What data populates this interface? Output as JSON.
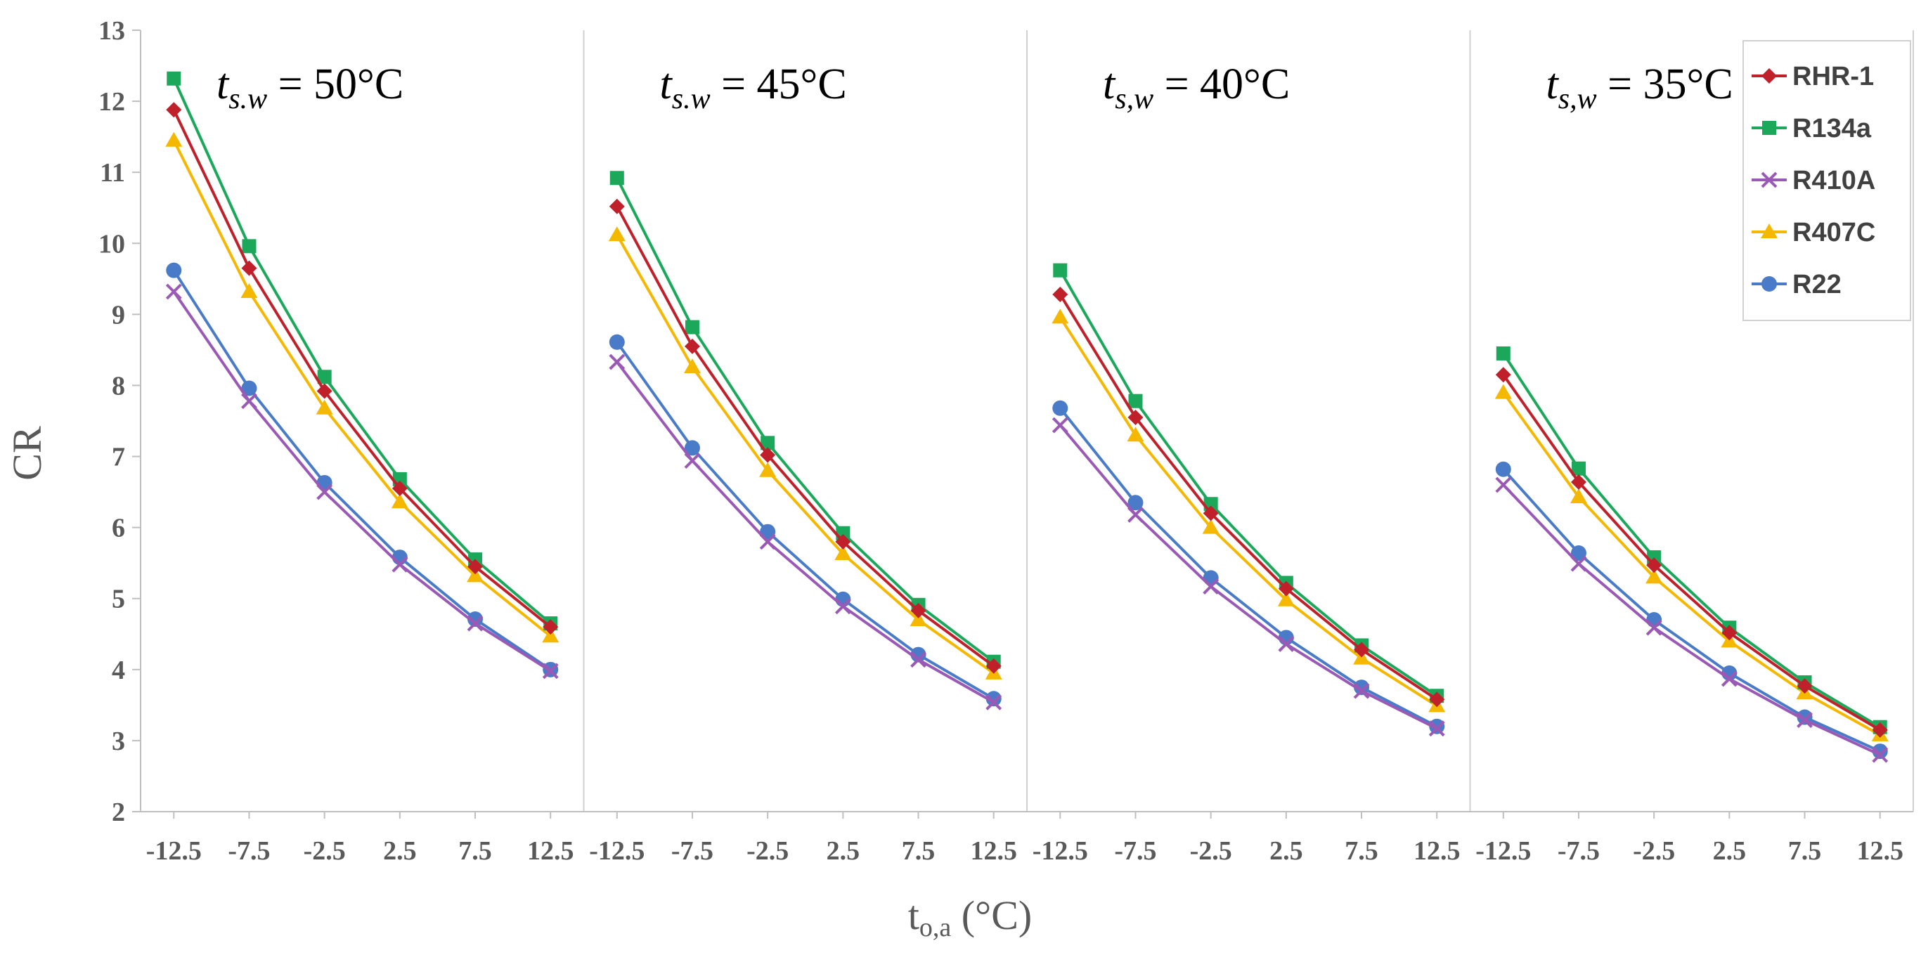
{
  "chart_data": {
    "type": "line",
    "ylabel": "CR",
    "xlabel": "t",
    "xlabel_sub": "o,a",
    "xlabel_unit": " (°C)",
    "ylim": [
      2,
      13
    ],
    "yticks": [
      "2",
      "3",
      "4",
      "5",
      "6",
      "7",
      "8",
      "9",
      "10",
      "11",
      "12",
      "13"
    ],
    "x": [
      -12.5,
      -7.5,
      -2.5,
      2.5,
      7.5,
      12.5
    ],
    "x_tick_labels": [
      "-12.5",
      "-7.5",
      "-2.5",
      "2.5",
      "7.5",
      "12.5"
    ],
    "legend": [
      "RHR-1",
      "R134a",
      "R410A",
      "R407C",
      "R22"
    ],
    "colors": {
      "RHR-1": "#C0202A",
      "R134a": "#1BA85A",
      "R410A": "#9B59B6",
      "R407C": "#F5B800",
      "R22": "#4A7BC8"
    },
    "panels": [
      {
        "label_t": "t",
        "label_sub": "s.w",
        "label_value": " = 50°C",
        "series": [
          {
            "name": "RHR-1",
            "values": [
              11.88,
              9.65,
              7.92,
              6.55,
              5.45,
              4.6
            ]
          },
          {
            "name": "R134a",
            "values": [
              12.32,
              9.96,
              8.12,
              6.68,
              5.55,
              4.65
            ]
          },
          {
            "name": "R410A",
            "values": [
              9.32,
              7.78,
              6.5,
              5.48,
              4.65,
              3.98
            ]
          },
          {
            "name": "R407C",
            "values": [
              11.45,
              9.32,
              7.68,
              6.36,
              5.32,
              4.47
            ]
          },
          {
            "name": "R22",
            "values": [
              9.62,
              7.96,
              6.63,
              5.58,
              4.71,
              4.0
            ]
          }
        ]
      },
      {
        "label_t": "t",
        "label_sub": "s.w",
        "label_value": " = 45°C",
        "series": [
          {
            "name": "RHR-1",
            "values": [
              10.52,
              8.55,
              7.02,
              5.8,
              4.83,
              4.05
            ]
          },
          {
            "name": "R134a",
            "values": [
              10.92,
              8.82,
              7.19,
              5.92,
              4.91,
              4.11
            ]
          },
          {
            "name": "R410A",
            "values": [
              8.33,
              6.94,
              5.8,
              4.89,
              4.14,
              3.54
            ]
          },
          {
            "name": "R407C",
            "values": [
              10.12,
              8.26,
              6.8,
              5.63,
              4.7,
              3.95
            ]
          },
          {
            "name": "R22",
            "values": [
              8.61,
              7.12,
              5.94,
              4.99,
              4.21,
              3.59
            ]
          }
        ]
      },
      {
        "label_t": "t",
        "label_sub": "s,w",
        "label_value": " = 40°C",
        "series": [
          {
            "name": "RHR-1",
            "values": [
              9.28,
              7.55,
              6.2,
              5.14,
              4.28,
              3.58
            ]
          },
          {
            "name": "R134a",
            "values": [
              9.62,
              7.78,
              6.33,
              5.22,
              4.34,
              3.63
            ]
          },
          {
            "name": "R410A",
            "values": [
              7.44,
              6.18,
              5.17,
              4.36,
              3.7,
              3.17
            ]
          },
          {
            "name": "R407C",
            "values": [
              8.96,
              7.3,
              6.0,
              4.98,
              4.16,
              3.49
            ]
          },
          {
            "name": "R22",
            "values": [
              7.68,
              6.35,
              5.29,
              4.45,
              3.75,
              3.2
            ]
          }
        ]
      },
      {
        "label_t": "t",
        "label_sub": "s,w",
        "label_value": " = 35°C",
        "series": [
          {
            "name": "RHR-1",
            "values": [
              8.15,
              6.64,
              5.47,
              4.52,
              3.77,
              3.15
            ]
          },
          {
            "name": "R134a",
            "values": [
              8.45,
              6.83,
              5.58,
              4.59,
              3.82,
              3.19
            ]
          },
          {
            "name": "R410A",
            "values": [
              6.6,
              5.49,
              4.59,
              3.87,
              3.29,
              2.8
            ]
          },
          {
            "name": "R407C",
            "values": [
              7.9,
              6.43,
              5.3,
              4.4,
              3.67,
              3.08
            ]
          },
          {
            "name": "R22",
            "values": [
              6.82,
              5.64,
              4.7,
              3.95,
              3.33,
              2.85
            ]
          }
        ]
      }
    ]
  }
}
